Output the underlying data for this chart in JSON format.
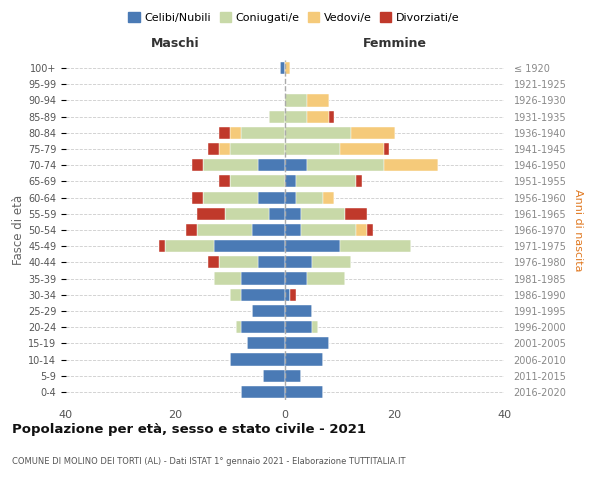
{
  "age_groups": [
    "0-4",
    "5-9",
    "10-14",
    "15-19",
    "20-24",
    "25-29",
    "30-34",
    "35-39",
    "40-44",
    "45-49",
    "50-54",
    "55-59",
    "60-64",
    "65-69",
    "70-74",
    "75-79",
    "80-84",
    "85-89",
    "90-94",
    "95-99",
    "100+"
  ],
  "birth_years": [
    "2016-2020",
    "2011-2015",
    "2006-2010",
    "2001-2005",
    "1996-2000",
    "1991-1995",
    "1986-1990",
    "1981-1985",
    "1976-1980",
    "1971-1975",
    "1966-1970",
    "1961-1965",
    "1956-1960",
    "1951-1955",
    "1946-1950",
    "1941-1945",
    "1936-1940",
    "1931-1935",
    "1926-1930",
    "1921-1925",
    "≤ 1920"
  ],
  "colors": {
    "celibi": "#4a7ab5",
    "coniugati": "#c8d9a8",
    "vedovi": "#f5ca7a",
    "divorziati": "#c0392b"
  },
  "males": {
    "celibi": [
      8,
      4,
      10,
      7,
      8,
      6,
      8,
      8,
      5,
      13,
      6,
      3,
      5,
      0,
      5,
      0,
      0,
      0,
      0,
      0,
      1
    ],
    "coniugati": [
      0,
      0,
      0,
      0,
      1,
      0,
      2,
      5,
      7,
      9,
      10,
      8,
      10,
      10,
      10,
      10,
      8,
      3,
      0,
      0,
      0
    ],
    "vedovi": [
      0,
      0,
      0,
      0,
      0,
      0,
      0,
      0,
      0,
      0,
      0,
      0,
      0,
      0,
      0,
      2,
      2,
      0,
      0,
      0,
      0
    ],
    "divorziati": [
      0,
      0,
      0,
      0,
      0,
      0,
      0,
      0,
      2,
      1,
      2,
      5,
      2,
      2,
      2,
      2,
      2,
      0,
      0,
      0,
      0
    ]
  },
  "females": {
    "nubili": [
      7,
      3,
      7,
      8,
      5,
      5,
      1,
      4,
      5,
      10,
      3,
      3,
      2,
      2,
      4,
      0,
      0,
      0,
      0,
      0,
      0
    ],
    "coniugate": [
      0,
      0,
      0,
      0,
      1,
      0,
      0,
      7,
      7,
      13,
      10,
      8,
      5,
      11,
      14,
      10,
      12,
      4,
      4,
      0,
      0
    ],
    "vedove": [
      0,
      0,
      0,
      0,
      0,
      0,
      0,
      0,
      0,
      0,
      2,
      0,
      2,
      0,
      10,
      8,
      8,
      4,
      4,
      0,
      1
    ],
    "divorziate": [
      0,
      0,
      0,
      0,
      0,
      0,
      1,
      0,
      0,
      0,
      1,
      4,
      0,
      1,
      0,
      1,
      0,
      1,
      0,
      0,
      0
    ]
  },
  "title": "Popolazione per età, sesso e stato civile - 2021",
  "subtitle": "COMUNE DI MOLINO DEI TORTI (AL) - Dati ISTAT 1° gennaio 2021 - Elaborazione TUTTITALIA.IT",
  "xlabel_left": "Maschi",
  "xlabel_right": "Femmine",
  "ylabel_left": "Fasce di età",
  "ylabel_right": "Anni di nascita",
  "xlim": 40,
  "legend_labels": [
    "Celibi/Nubili",
    "Coniugati/e",
    "Vedovi/e",
    "Divorziati/e"
  ]
}
